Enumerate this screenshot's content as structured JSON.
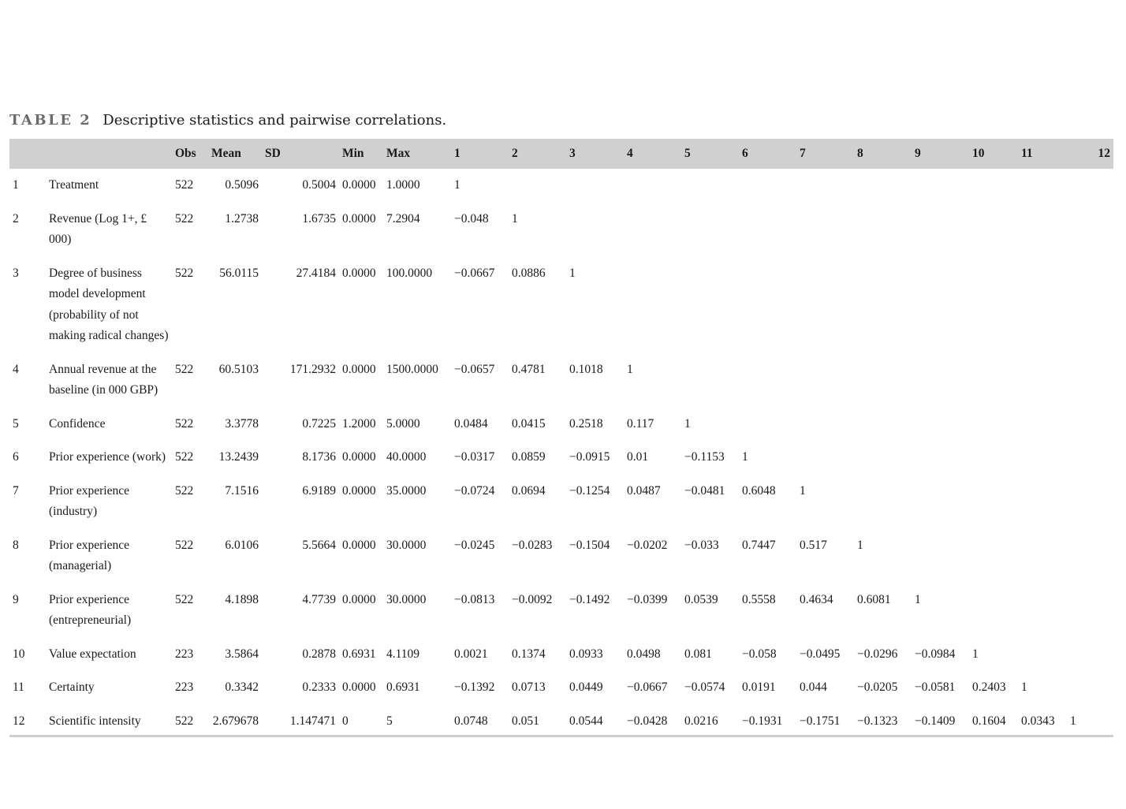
{
  "caption": {
    "label": "TABLE 2",
    "title": "Descriptive statistics and pairwise correlations."
  },
  "headers": [
    "",
    "",
    "Obs",
    "Mean",
    "SD",
    "Min",
    "Max",
    "1",
    "2",
    "3",
    "4",
    "5",
    "6",
    "7",
    "8",
    "9",
    "10",
    "11",
    "12"
  ],
  "rows": [
    {
      "n": "1",
      "var": "Treatment",
      "obs": "522",
      "mean": "0.5096",
      "sd": "0.5004",
      "min": "0.0000",
      "max": "1.0000",
      "corr": [
        "1",
        "",
        "",
        "",
        "",
        "",
        "",
        "",
        "",
        "",
        "",
        ""
      ]
    },
    {
      "n": "2",
      "var": "Revenue (Log 1+, £ 000)",
      "obs": "522",
      "mean": "1.2738",
      "sd": "1.6735",
      "min": "0.0000",
      "max": "7.2904",
      "corr": [
        "−0.048",
        "1",
        "",
        "",
        "",
        "",
        "",
        "",
        "",
        "",
        "",
        ""
      ]
    },
    {
      "n": "3",
      "var": "Degree of business model development (probability of not making radical changes)",
      "obs": "522",
      "mean": "56.0115",
      "sd": "27.4184",
      "min": "0.0000",
      "max": "100.0000",
      "corr": [
        "−0.0667",
        "0.0886",
        "1",
        "",
        "",
        "",
        "",
        "",
        "",
        "",
        "",
        ""
      ]
    },
    {
      "n": "4",
      "var": "Annual revenue at the baseline (in 000 GBP)",
      "obs": "522",
      "mean": "60.5103",
      "sd": "171.2932",
      "min": "0.0000",
      "max": "1500.0000",
      "corr": [
        "−0.0657",
        "0.4781",
        "0.1018",
        "1",
        "",
        "",
        "",
        "",
        "",
        "",
        "",
        ""
      ]
    },
    {
      "n": "5",
      "var": "Confidence",
      "obs": "522",
      "mean": "3.3778",
      "sd": "0.7225",
      "min": "1.2000",
      "max": "5.0000",
      "corr": [
        "0.0484",
        "0.0415",
        "0.2518",
        "0.117",
        "1",
        "",
        "",
        "",
        "",
        "",
        "",
        ""
      ]
    },
    {
      "n": "6",
      "var": "Prior experience (work)",
      "obs": "522",
      "mean": "13.2439",
      "sd": "8.1736",
      "min": "0.0000",
      "max": "40.0000",
      "corr": [
        "−0.0317",
        "0.0859",
        "−0.0915",
        "0.01",
        "−0.1153",
        "1",
        "",
        "",
        "",
        "",
        "",
        ""
      ]
    },
    {
      "n": "7",
      "var": "Prior experience (industry)",
      "obs": "522",
      "mean": "7.1516",
      "sd": "6.9189",
      "min": "0.0000",
      "max": "35.0000",
      "corr": [
        "−0.0724",
        "0.0694",
        "−0.1254",
        "0.0487",
        "−0.0481",
        "0.6048",
        "1",
        "",
        "",
        "",
        "",
        ""
      ]
    },
    {
      "n": "8",
      "var": "Prior experience (managerial)",
      "obs": "522",
      "mean": "6.0106",
      "sd": "5.5664",
      "min": "0.0000",
      "max": "30.0000",
      "corr": [
        "−0.0245",
        "−0.0283",
        "−0.1504",
        "−0.0202",
        "−0.033",
        "0.7447",
        "0.517",
        "1",
        "",
        "",
        "",
        ""
      ]
    },
    {
      "n": "9",
      "var": "Prior experience (entrepreneurial)",
      "obs": "522",
      "mean": "4.1898",
      "sd": "4.7739",
      "min": "0.0000",
      "max": "30.0000",
      "corr": [
        "−0.0813",
        "−0.0092",
        "−0.1492",
        "−0.0399",
        "0.0539",
        "0.5558",
        "0.4634",
        "0.6081",
        "1",
        "",
        "",
        ""
      ]
    },
    {
      "n": "10",
      "var": "Value expectation",
      "obs": "223",
      "mean": "3.5864",
      "sd": "0.2878",
      "min": "0.6931",
      "max": "4.1109",
      "corr": [
        "0.0021",
        "0.1374",
        "0.0933",
        "0.0498",
        "0.081",
        "−0.058",
        "−0.0495",
        "−0.0296",
        "−0.0984",
        "1",
        "",
        ""
      ]
    },
    {
      "n": "11",
      "var": "Certainty",
      "obs": "223",
      "mean": "0.3342",
      "sd": "0.2333",
      "min": "0.0000",
      "max": "0.6931",
      "corr": [
        "−0.1392",
        "0.0713",
        "0.0449",
        "−0.0667",
        "−0.0574",
        "0.0191",
        "0.044",
        "−0.0205",
        "−0.0581",
        "0.2403",
        "1",
        ""
      ]
    },
    {
      "n": "12",
      "var": "Scientific intensity",
      "obs": "522",
      "mean": "2.679678",
      "sd": "1.147471",
      "min": "0",
      "max": "5",
      "corr": [
        "0.0748",
        "0.051",
        "0.0544",
        "−0.0428",
        "0.0216",
        "−0.1931",
        "−0.1751",
        "−0.1323",
        "−0.1409",
        "0.1604",
        "0.0343",
        "1"
      ]
    }
  ]
}
